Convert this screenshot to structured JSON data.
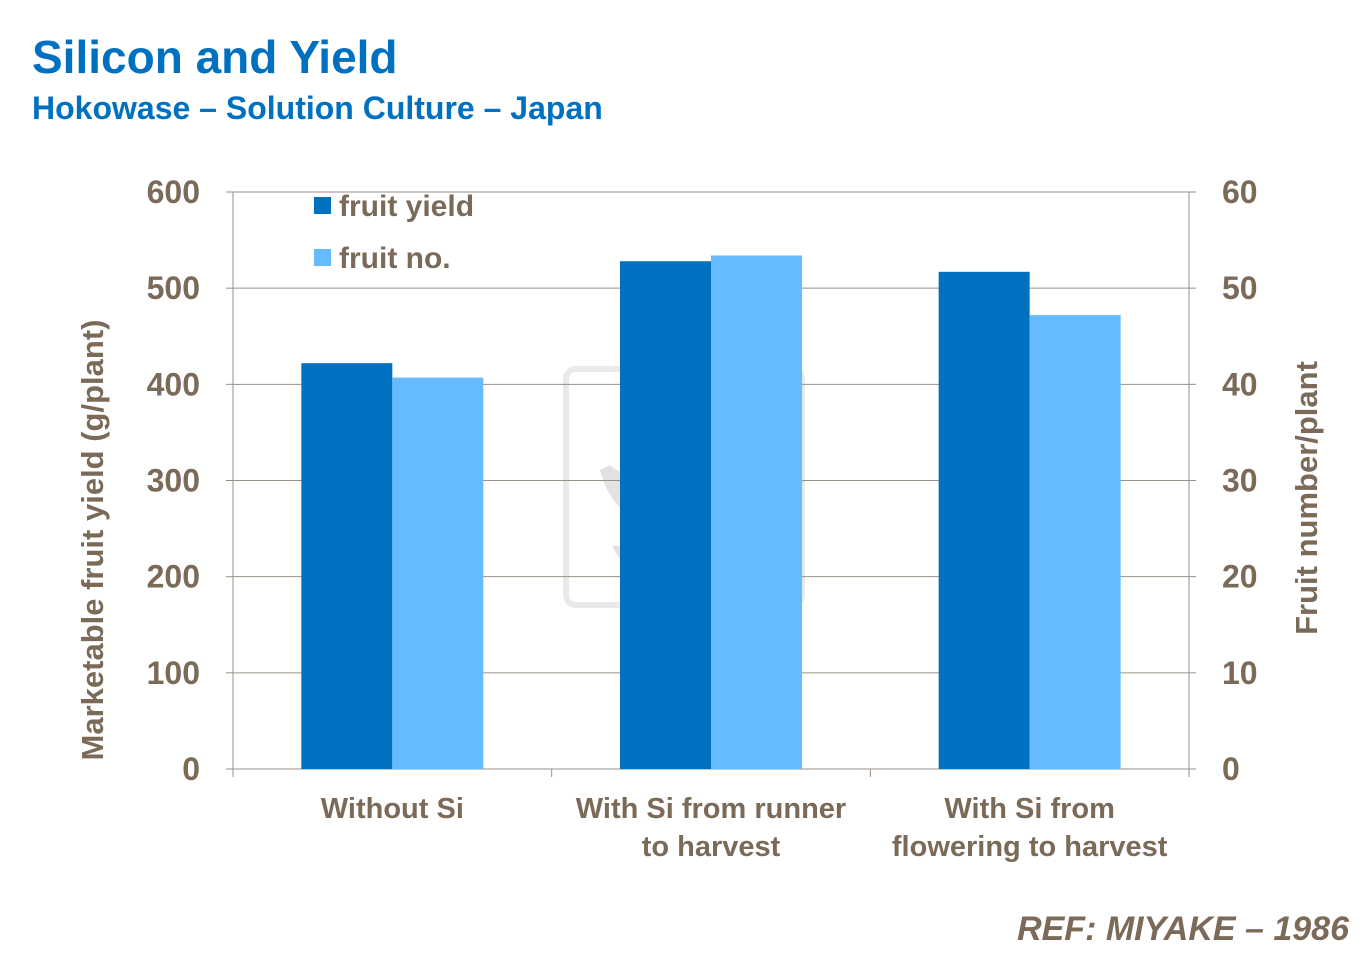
{
  "title": "Silicon and Yield",
  "subtitle": "Hokowase – Solution Culture – Japan",
  "reference": "REF:  MIYAKE – 1986",
  "watermark": "YARA",
  "chart_data": {
    "type": "bar",
    "categories": [
      [
        "Without Si"
      ],
      [
        "With Si from runner",
        "to harvest"
      ],
      [
        "With Si from",
        "flowering to harvest"
      ]
    ],
    "series": [
      {
        "name": "fruit yield",
        "axis": "left",
        "color": "#0070c0",
        "values": [
          422,
          528,
          517
        ]
      },
      {
        "name": "fruit no.",
        "axis": "right",
        "color": "#66bbff",
        "values": [
          40.7,
          53.4,
          47.2
        ]
      }
    ],
    "ylabel": "Marketable fruit yield (g/plant)",
    "ylabel_right": "Fruit number/plant",
    "ylim": [
      0,
      600
    ],
    "ylim_right": [
      0,
      60
    ],
    "yticks": [
      0,
      100,
      200,
      300,
      400,
      500,
      600
    ],
    "yticks_right": [
      0,
      10,
      20,
      30,
      40,
      50,
      60
    ],
    "grid": true,
    "legend": "top-left"
  }
}
